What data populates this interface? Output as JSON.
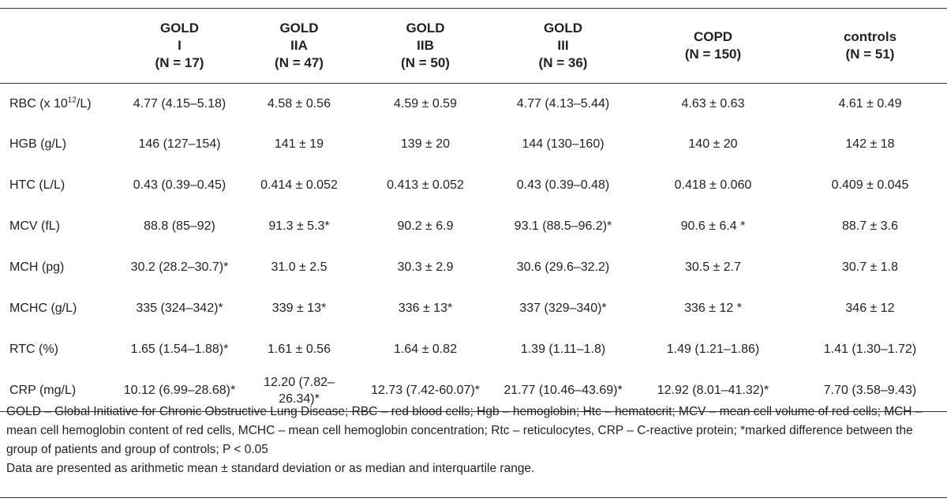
{
  "columns": [
    {
      "line1": "",
      "line2": "",
      "line3": ""
    },
    {
      "line1": "GOLD",
      "line2": "I",
      "line3": "(N = 17)"
    },
    {
      "line1": "GOLD",
      "line2": "IIA",
      "line3": "(N = 47)"
    },
    {
      "line1": "GOLD",
      "line2": "IIB",
      "line3": "(N = 50)"
    },
    {
      "line1": "GOLD",
      "line2": "III",
      "line3": "(N = 36)"
    },
    {
      "line1": "",
      "line2": "COPD",
      "line3": "(N = 150)"
    },
    {
      "line1": "",
      "line2": "controls",
      "line3": "(N = 51)"
    }
  ],
  "rows": [
    {
      "label_pre": "RBC (x 10",
      "label_sup": "12",
      "label_post": "/L)",
      "cells": [
        "4.77 (4.15–5.18)",
        "4.58 ± 0.56",
        "4.59 ± 0.59",
        "4.77 (4.13–5.44)",
        "4.63 ± 0.63",
        "4.61 ± 0.49"
      ]
    },
    {
      "label": "HGB (g/L)",
      "cells": [
        "146 (127–154)",
        "141 ± 19",
        "139 ± 20",
        "144 (130–160)",
        "140 ± 20",
        "142 ± 18"
      ]
    },
    {
      "label": "HTC (L/L)",
      "cells": [
        "0.43 (0.39–0.45)",
        "0.414 ± 0.052",
        "0.413 ± 0.052",
        "0.43 (0.39–0.48)",
        "0.418 ± 0.060",
        "0.409 ± 0.045"
      ]
    },
    {
      "label": "MCV (fL)",
      "cells": [
        "88.8 (85–92)",
        "91.3 ± 5.3*",
        "90.2 ± 6.9",
        "93.1 (88.5–96.2)*",
        "90.6 ± 6.4 *",
        "88.7 ± 3.6"
      ]
    },
    {
      "label": "MCH (pg)",
      "cells": [
        "30.2 (28.2–30.7)*",
        "31.0 ± 2.5",
        "30.3 ± 2.9",
        "30.6 (29.6–32.2)",
        "30.5 ± 2.7",
        "30.7 ± 1.8"
      ]
    },
    {
      "label": "MCHC (g/L)",
      "cells": [
        "335 (324–342)*",
        "339 ± 13*",
        "336 ± 13*",
        "337 (329–340)*",
        "336 ± 12 *",
        "346 ± 12"
      ]
    },
    {
      "label": "RTC (%)",
      "cells": [
        "1.65 (1.54–1.88)*",
        "1.61 ± 0.56",
        "1.64 ± 0.82",
        "1.39 (1.11–1.8)",
        "1.49 (1.21–1.86)",
        "1.41 (1.30–1.72)"
      ]
    },
    {
      "label": "CRP (mg/L)",
      "cells": [
        "10.12 (6.99–28.68)*",
        "12.20 (7.82–26.34)*",
        "12.73 (7.42-60.07)*",
        "21.77 (10.46–43.69)*",
        "12.92 (8.01–41.32)*",
        "7.70 (3.58–9.43)"
      ]
    }
  ],
  "footnote": {
    "abbrev": "GOLD – Global Initiative for Chronic Obstructive Lung Disease; RBC – red blood cells; Hgb – hemoglobin; Htc – hematocrit; MCV – mean cell volume of red cells; MCH – mean cell hemoglobin content of red cells, MCHC – mean cell hemoglobin concentration; Rtc – reticulocytes, CRP – C-reactive protein; *marked difference between the group of patients and group of controls; P < 0.05",
    "data_note": "Data are presented as arithmetic mean ± standard deviation or as median and interquartile range."
  }
}
